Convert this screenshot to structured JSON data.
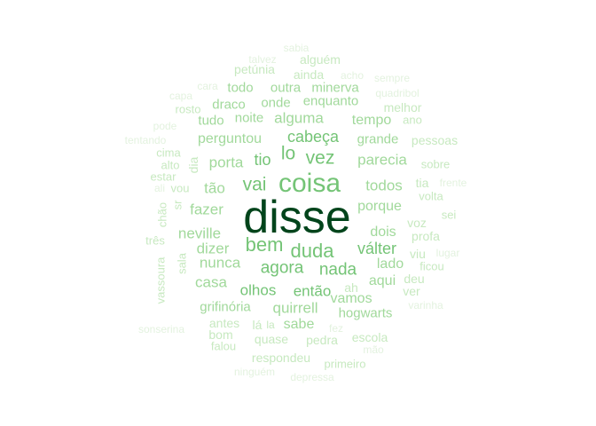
{
  "wordcloud": {
    "palette": {
      "very_light": "#e3f2df",
      "light": "#c7e9c0",
      "mid_light": "#a1d99b",
      "mid": "#74c476",
      "mid_dark": "#41ab5d",
      "darkest": "#00441b"
    },
    "words": [
      {
        "text": "disse",
        "tone": "darkest"
      },
      {
        "text": "coisa",
        "tone": "mid"
      },
      {
        "text": "bem",
        "tone": "mid"
      },
      {
        "text": "duda",
        "tone": "mid"
      },
      {
        "text": "vai",
        "tone": "mid"
      },
      {
        "text": "vez",
        "tone": "mid"
      },
      {
        "text": "cabeça",
        "tone": "mid"
      },
      {
        "text": "lo",
        "tone": "mid"
      },
      {
        "text": "válter",
        "tone": "mid"
      },
      {
        "text": "agora",
        "tone": "mid"
      },
      {
        "text": "nada",
        "tone": "mid"
      },
      {
        "text": "olhos",
        "tone": "mid"
      },
      {
        "text": "então",
        "tone": "mid"
      },
      {
        "text": "tio",
        "tone": "mid"
      },
      {
        "text": "alguma",
        "tone": "mid_light"
      },
      {
        "text": "parecia",
        "tone": "mid_light"
      },
      {
        "text": "porta",
        "tone": "mid_light"
      },
      {
        "text": "perguntou",
        "tone": "mid_light"
      },
      {
        "text": "todos",
        "tone": "mid_light"
      },
      {
        "text": "tão",
        "tone": "mid_light"
      },
      {
        "text": "fazer",
        "tone": "mid_light"
      },
      {
        "text": "neville",
        "tone": "mid_light"
      },
      {
        "text": "dizer",
        "tone": "mid_light"
      },
      {
        "text": "nunca",
        "tone": "mid_light"
      },
      {
        "text": "casa",
        "tone": "mid_light"
      },
      {
        "text": "quirrell",
        "tone": "mid_light"
      },
      {
        "text": "sabe",
        "tone": "mid_light"
      },
      {
        "text": "vamos",
        "tone": "mid_light"
      },
      {
        "text": "aqui",
        "tone": "mid_light"
      },
      {
        "text": "porque",
        "tone": "mid_light"
      },
      {
        "text": "dois",
        "tone": "mid_light"
      },
      {
        "text": "lado",
        "tone": "mid_light"
      },
      {
        "text": "tempo",
        "tone": "mid_light"
      },
      {
        "text": "noite",
        "tone": "mid_light"
      },
      {
        "text": "grande",
        "tone": "mid_light"
      },
      {
        "text": "grifinória",
        "tone": "mid_light"
      },
      {
        "text": "hogwarts",
        "tone": "mid_light"
      },
      {
        "text": "enquanto",
        "tone": "mid_light"
      },
      {
        "text": "outra",
        "tone": "mid_light"
      },
      {
        "text": "minerva",
        "tone": "mid_light"
      },
      {
        "text": "onde",
        "tone": "mid_light"
      },
      {
        "text": "draco",
        "tone": "mid_light"
      },
      {
        "text": "tudo",
        "tone": "mid_light"
      },
      {
        "text": "todo",
        "tone": "mid_light"
      },
      {
        "text": "ainda",
        "tone": "light"
      },
      {
        "text": "alguém",
        "tone": "light"
      },
      {
        "text": "petúnia",
        "tone": "light"
      },
      {
        "text": "rosto",
        "tone": "light"
      },
      {
        "text": "melhor",
        "tone": "light"
      },
      {
        "text": "ano",
        "tone": "light"
      },
      {
        "text": "pessoas",
        "tone": "light"
      },
      {
        "text": "sobre",
        "tone": "light"
      },
      {
        "text": "tia",
        "tone": "light"
      },
      {
        "text": "volta",
        "tone": "light"
      },
      {
        "text": "voz",
        "tone": "light"
      },
      {
        "text": "profa",
        "tone": "light"
      },
      {
        "text": "viu",
        "tone": "light"
      },
      {
        "text": "ficou",
        "tone": "light"
      },
      {
        "text": "deu",
        "tone": "light"
      },
      {
        "text": "ver",
        "tone": "light"
      },
      {
        "text": "sei",
        "tone": "light"
      },
      {
        "text": "ah",
        "tone": "light"
      },
      {
        "text": "cima",
        "tone": "light"
      },
      {
        "text": "alto",
        "tone": "light"
      },
      {
        "text": "estar",
        "tone": "light"
      },
      {
        "text": "vou",
        "tone": "light"
      },
      {
        "text": "dia",
        "tone": "light"
      },
      {
        "text": "sr",
        "tone": "light"
      },
      {
        "text": "chão",
        "tone": "light"
      },
      {
        "text": "três",
        "tone": "light"
      },
      {
        "text": "sala",
        "tone": "light"
      },
      {
        "text": "vassoura",
        "tone": "light"
      },
      {
        "text": "antes",
        "tone": "light"
      },
      {
        "text": "lá",
        "tone": "light"
      },
      {
        "text": "la",
        "tone": "light"
      },
      {
        "text": "bom",
        "tone": "light"
      },
      {
        "text": "falou",
        "tone": "light"
      },
      {
        "text": "quase",
        "tone": "light"
      },
      {
        "text": "pedra",
        "tone": "light"
      },
      {
        "text": "escola",
        "tone": "light"
      },
      {
        "text": "respondeu",
        "tone": "light"
      },
      {
        "text": "primeiro",
        "tone": "light"
      },
      {
        "text": "sabia",
        "tone": "very_light"
      },
      {
        "text": "talvez",
        "tone": "very_light"
      },
      {
        "text": "acho",
        "tone": "very_light"
      },
      {
        "text": "sempre",
        "tone": "very_light"
      },
      {
        "text": "cara",
        "tone": "very_light"
      },
      {
        "text": "capa",
        "tone": "very_light"
      },
      {
        "text": "quadribol",
        "tone": "very_light"
      },
      {
        "text": "pode",
        "tone": "very_light"
      },
      {
        "text": "tentando",
        "tone": "very_light"
      },
      {
        "text": "frente",
        "tone": "very_light"
      },
      {
        "text": "ali",
        "tone": "very_light"
      },
      {
        "text": "lugar",
        "tone": "very_light"
      },
      {
        "text": "varinha",
        "tone": "very_light"
      },
      {
        "text": "sonserina",
        "tone": "very_light"
      },
      {
        "text": "fez",
        "tone": "very_light"
      },
      {
        "text": "mão",
        "tone": "very_light"
      },
      {
        "text": "ninguém",
        "tone": "very_light"
      },
      {
        "text": "depressa",
        "tone": "very_light"
      }
    ]
  }
}
